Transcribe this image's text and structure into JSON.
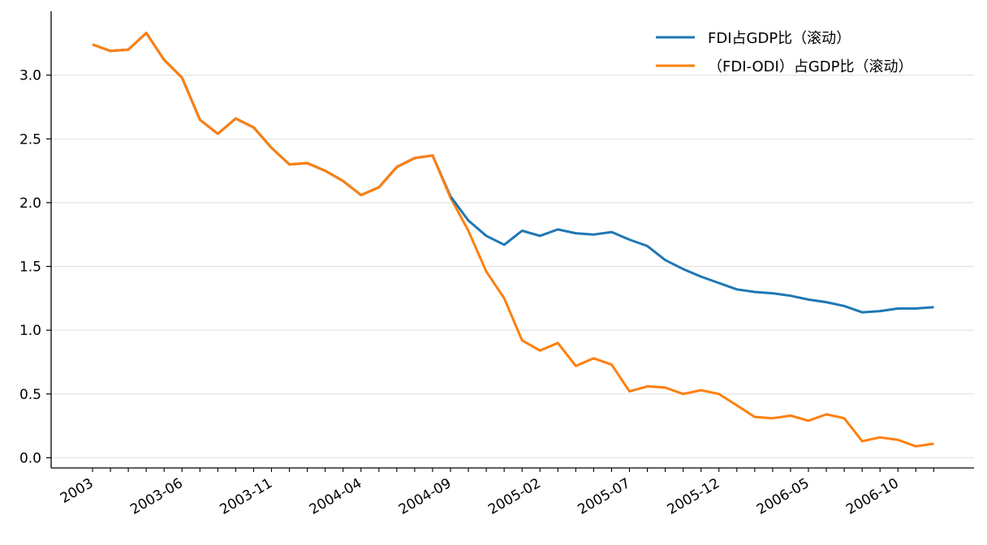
{
  "chart_data": {
    "type": "line",
    "title": "",
    "xlabel": "",
    "ylabel": "",
    "x": [
      "2003-01",
      "2003-02",
      "2003-03",
      "2003-04",
      "2003-05",
      "2003-06",
      "2003-07",
      "2003-08",
      "2003-09",
      "2003-10",
      "2003-11",
      "2003-12",
      "2004-01",
      "2004-02",
      "2004-03",
      "2004-04",
      "2004-05",
      "2004-06",
      "2004-07",
      "2004-08",
      "2004-09",
      "2004-10",
      "2004-11",
      "2004-12",
      "2005-01",
      "2005-02",
      "2005-03",
      "2005-04",
      "2005-05",
      "2005-06",
      "2005-07",
      "2005-08",
      "2005-09",
      "2005-10",
      "2005-11",
      "2005-12",
      "2006-01",
      "2006-02",
      "2006-03",
      "2006-04",
      "2006-05",
      "2006-06",
      "2006-07",
      "2006-08",
      "2006-09",
      "2006-10",
      "2006-11",
      "2006-12"
    ],
    "x_tick_labels": [
      "2003",
      "2003-06",
      "2003-11",
      "2004-04",
      "2004-09",
      "2005-02",
      "2005-07",
      "2005-12",
      "2006-05",
      "2006-10"
    ],
    "x_tick_label_index": [
      0,
      5,
      10,
      15,
      20,
      25,
      30,
      35,
      40,
      45
    ],
    "ylim": [
      -0.08,
      3.5
    ],
    "yticks": [
      0.0,
      0.5,
      1.0,
      1.5,
      2.0,
      2.5,
      3.0
    ],
    "ytick_labels": [
      "0.0",
      "0.5",
      "1.0",
      "1.5",
      "2.0",
      "2.5",
      "3.0"
    ],
    "grid": "horizontal",
    "legend_position": "top-right",
    "series": [
      {
        "name": "FDI占GDP比（滚动）",
        "color": "#1f77b4",
        "values": [
          3.24,
          3.19,
          3.2,
          3.33,
          3.12,
          2.98,
          2.65,
          2.54,
          2.66,
          2.59,
          2.43,
          2.3,
          2.31,
          2.25,
          2.17,
          2.06,
          2.12,
          2.28,
          2.35,
          2.37,
          2.05,
          1.86,
          1.74,
          1.67,
          1.78,
          1.74,
          1.79,
          1.76,
          1.75,
          1.77,
          1.71,
          1.66,
          1.55,
          1.48,
          1.42,
          1.37,
          1.32,
          1.3,
          1.29,
          1.27,
          1.24,
          1.22,
          1.19,
          1.14,
          1.15,
          1.17,
          1.17,
          1.18
        ]
      },
      {
        "name": "（FDI-ODI）占GDP比（滚动）",
        "color": "#ff7f0e",
        "values": [
          3.24,
          3.19,
          3.2,
          3.33,
          3.12,
          2.98,
          2.65,
          2.54,
          2.66,
          2.59,
          2.43,
          2.3,
          2.31,
          2.25,
          2.17,
          2.06,
          2.12,
          2.28,
          2.35,
          2.37,
          2.04,
          1.78,
          1.46,
          1.25,
          0.92,
          0.84,
          0.9,
          0.72,
          0.78,
          0.73,
          0.52,
          0.56,
          0.55,
          0.5,
          0.53,
          0.5,
          0.41,
          0.32,
          0.31,
          0.33,
          0.29,
          0.34,
          0.31,
          0.13,
          0.16,
          0.14,
          0.09,
          0.11
        ]
      }
    ]
  }
}
